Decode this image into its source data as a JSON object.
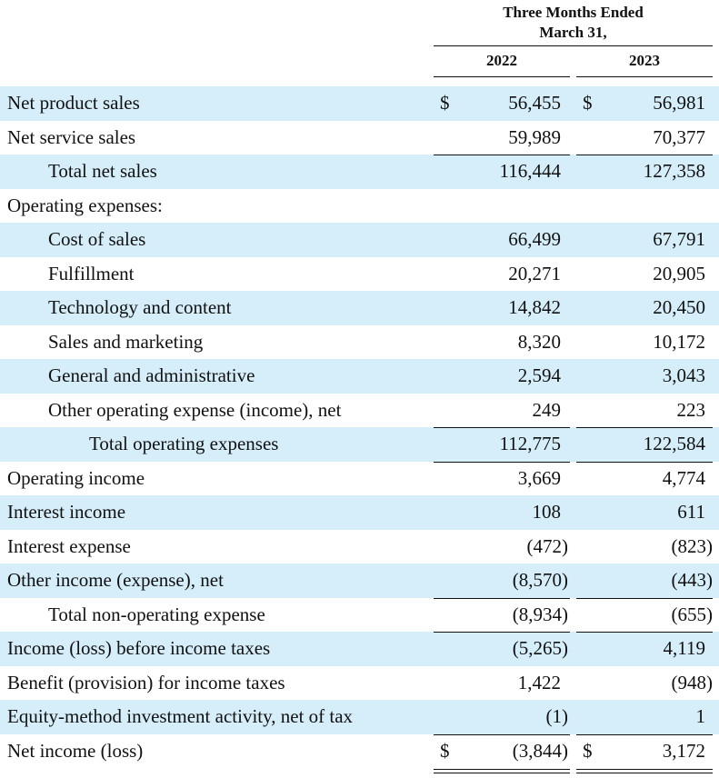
{
  "header": {
    "period_line1": "Three Months Ended",
    "period_line2": "March 31,",
    "year1": "2022",
    "year2": "2023"
  },
  "currency_symbol": "$",
  "rows": [
    {
      "label": "Net product sales",
      "v1": "56,455",
      "v2": "56,981"
    },
    {
      "label": "Net service sales",
      "v1": "59,989",
      "v2": "70,377"
    },
    {
      "label": "Total net sales",
      "v1": "116,444",
      "v2": "127,358"
    },
    {
      "label": "Operating expenses:",
      "v1": "",
      "v2": ""
    },
    {
      "label": "Cost of sales",
      "v1": "66,499",
      "v2": "67,791"
    },
    {
      "label": "Fulfillment",
      "v1": "20,271",
      "v2": "20,905"
    },
    {
      "label": "Technology and content",
      "v1": "14,842",
      "v2": "20,450"
    },
    {
      "label": "Sales and marketing",
      "v1": "8,320",
      "v2": "10,172"
    },
    {
      "label": "General and administrative",
      "v1": "2,594",
      "v2": "3,043"
    },
    {
      "label": "Other operating expense (income), net",
      "v1": "249",
      "v2": "223"
    },
    {
      "label": "Total operating expenses",
      "v1": "112,775",
      "v2": "122,584"
    },
    {
      "label": "Operating income",
      "v1": "3,669",
      "v2": "4,774"
    },
    {
      "label": "Interest income",
      "v1": "108",
      "v2": "611"
    },
    {
      "label": "Interest expense",
      "v1": "(472)",
      "v2": "(823)"
    },
    {
      "label": "Other income (expense), net",
      "v1": "(8,570)",
      "v2": "(443)"
    },
    {
      "label": "Total non-operating expense",
      "v1": "(8,934)",
      "v2": "(655)"
    },
    {
      "label": "Income (loss) before income taxes",
      "v1": "(5,265)",
      "v2": "4,119"
    },
    {
      "label": "Benefit (provision) for income taxes",
      "v1": "1,422",
      "v2": "(948)"
    },
    {
      "label": "Equity-method investment activity, net of tax",
      "v1": "(1)",
      "v2": "1"
    },
    {
      "label": "Net income (loss)",
      "v1": "(3,844)",
      "v2": "3,172"
    }
  ]
}
